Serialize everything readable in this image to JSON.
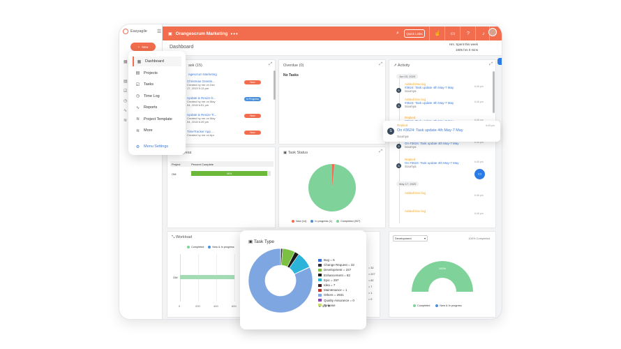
{
  "app": {
    "name": "Easyagile",
    "new_label": "New"
  },
  "topbar": {
    "project": "Orangescrum Marketing",
    "dots": "•••",
    "quick_links": "Quick Links"
  },
  "header": {
    "title": "Dashboard",
    "hrs_label": "Hrs. Spent this week",
    "hrs_value": "1805 hrs 0 mins"
  },
  "menu": {
    "items": [
      {
        "label": "Dashboard",
        "icon": "grid-icon"
      },
      {
        "label": "Projects",
        "icon": "briefcase-icon"
      },
      {
        "label": "Tasks",
        "icon": "checkbox-icon"
      },
      {
        "label": "Time Log",
        "icon": "clock-icon"
      },
      {
        "label": "Reports",
        "icon": "chart-line-icon"
      },
      {
        "label": "Project Template",
        "icon": "layers-icon"
      },
      {
        "label": "More",
        "icon": "layers-icon"
      }
    ],
    "settings": "Menu Settings"
  },
  "task_card": {
    "title": "ask (15)",
    "project": "ngescrum Marketing",
    "rows": [
      {
        "name": "Christmas Greetin...",
        "created": "Created by me on Dec",
        "date": "17, 2019 5:13 pm",
        "status": "New",
        "color": "#f26d4e"
      },
      {
        "name": "Update & Resize b...",
        "created": "Created by me on May",
        "date": "04, 2018 6:51 pm",
        "status": "In Progress",
        "color": "#4a90d9"
      },
      {
        "name": "Update & Resize Ti...",
        "created": "Created by me on May",
        "date": "04, 2018 6:49 pm",
        "status": "New",
        "color": "#f26d4e"
      },
      {
        "name": "TimeTracker App ...",
        "created": "Created by me on Apr",
        "date": "",
        "status": "New",
        "color": "#f26d4e"
      }
    ]
  },
  "overdue": {
    "title": "Overdue (0)",
    "empty": "No Tasks"
  },
  "activity": {
    "title": "Activity",
    "date1": "Jun 03, 2020",
    "date2": "May 17, 2020",
    "entries": [
      {
        "label": "Added time log",
        "link": "#3624: Task update 4th May-7 May",
        "who": "Soumya",
        "time": "6:46 pm"
      },
      {
        "label": "Added time log",
        "link": "#3624: Task update 4th May-7 May",
        "who": "Soumya",
        "time": "6:46 pm"
      },
      {
        "label": "Replied",
        "link": "#3624: Task update 4th May-7 May",
        "who": "Soumya",
        "time": "6:46 pm"
      },
      {
        "label": "Replied",
        "link": "On #3624: Task update 4th May-7 May",
        "who": "Soumya",
        "time": "6:45 pm"
      },
      {
        "label": "Replied",
        "link": "On #3624: Task update 4th May-7 May",
        "who": "Soumya",
        "time": "6:45 pm"
      },
      {
        "label": "Added time log",
        "link": "",
        "who": "",
        "time": "6:46 pm"
      },
      {
        "label": "Added time log",
        "link": "",
        "who": "",
        "time": "6:46 pm"
      }
    ]
  },
  "popup": {
    "label": "Replied",
    "link": "On #3624: Task update 4th May-7 May",
    "who": "Soumya",
    "time": "6:49 pm",
    "avatar": "S"
  },
  "progress": {
    "title": "rogress",
    "col_project": "Project",
    "col_percent": "Percent Complete",
    "row_project": "OM",
    "row_percent": "96%",
    "percent_value": 96
  },
  "task_status": {
    "title": "Task Status",
    "legend": [
      {
        "label": "New (14)",
        "color": "#f26d4e"
      },
      {
        "label": "In progress (1)",
        "color": "#4a90d9"
      },
      {
        "label": "Completed (907)",
        "color": "#7fd39a"
      }
    ],
    "values": [
      14,
      1,
      907
    ]
  },
  "workload": {
    "title": "Workload",
    "legend": [
      {
        "label": "Completed",
        "color": "#7fd39a"
      },
      {
        "label": "New & In progress",
        "color": "#4a90d9"
      }
    ],
    "row_label": "OM",
    "ticks": [
      "0",
      "200",
      "400",
      "600"
    ],
    "value": 600
  },
  "development": {
    "select": "Development",
    "label": "100% Completed",
    "gauge_label": "100%",
    "legend": [
      {
        "label": "Completed",
        "color": "#7fd39a"
      },
      {
        "label": "New & In progress",
        "color": "#4a90d9"
      }
    ]
  },
  "task_type": {
    "title": "Task Type",
    "items": [
      {
        "label": "Bug = 6",
        "value": 6,
        "color": "#3a6fd8"
      },
      {
        "label": "Change Request = 32",
        "value": 32,
        "color": "#2d2d3a"
      },
      {
        "label": "Development = 227",
        "value": 227,
        "color": "#7bc043"
      },
      {
        "label": "Enhancement = 82",
        "value": 82,
        "color": "#1a1a1a"
      },
      {
        "label": "Epic = 297",
        "value": 297,
        "color": "#2bb3d9"
      },
      {
        "label": "Idea = 7",
        "value": 7,
        "color": "#3b1f1f"
      },
      {
        "label": "Maintenance = 1",
        "value": 1,
        "color": "#c0392b"
      },
      {
        "label": "Others = 2931",
        "value": 2931,
        "color": "#7ea6e0"
      },
      {
        "label": "Quality Assurance = 0",
        "value": 0,
        "color": "#8e44ad"
      },
      {
        "label": "Release",
        "value": 0,
        "color": "#c8e06e"
      }
    ],
    "pager": "1/2",
    "right_values": [
      "= 32",
      "= 227",
      "= 82",
      "= 7",
      "= 1",
      "= 0"
    ]
  }
}
